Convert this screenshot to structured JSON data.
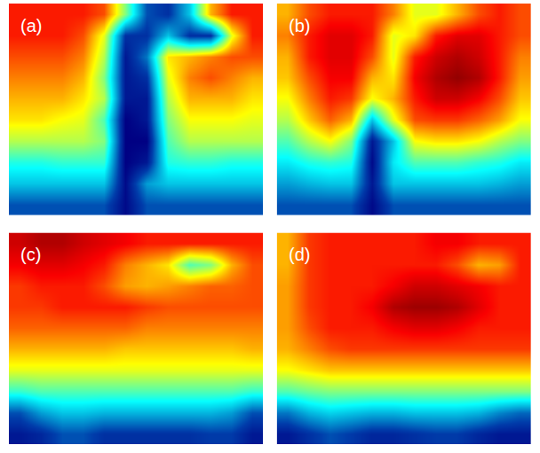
{
  "chart_data": [
    {
      "type": "heatmap",
      "title": "(a)",
      "color": "Jet",
      "zlim": [
        0,
        1
      ],
      "tick_labels": false,
      "z": [
        [
          0.85,
          0.85,
          0.85,
          0.85,
          0.8,
          0.5,
          0.15,
          0.1,
          0.3,
          0.7,
          0.85,
          0.85
        ],
        [
          0.85,
          0.85,
          0.85,
          0.8,
          0.6,
          0.1,
          0.1,
          0.3,
          0.1,
          0.1,
          0.6,
          0.85
        ],
        [
          0.8,
          0.8,
          0.8,
          0.75,
          0.55,
          0.05,
          0.2,
          0.65,
          0.7,
          0.75,
          0.8,
          0.8
        ],
        [
          0.75,
          0.75,
          0.75,
          0.7,
          0.5,
          0.05,
          0.1,
          0.6,
          0.75,
          0.8,
          0.75,
          0.7
        ],
        [
          0.7,
          0.7,
          0.7,
          0.65,
          0.55,
          0.05,
          0.05,
          0.55,
          0.7,
          0.7,
          0.7,
          0.65
        ],
        [
          0.65,
          0.65,
          0.62,
          0.6,
          0.45,
          0.0,
          0.05,
          0.5,
          0.62,
          0.62,
          0.62,
          0.6
        ],
        [
          0.55,
          0.55,
          0.55,
          0.55,
          0.5,
          0.0,
          0.0,
          0.45,
          0.55,
          0.55,
          0.55,
          0.55
        ],
        [
          0.4,
          0.4,
          0.42,
          0.42,
          0.42,
          0.0,
          0.05,
          0.4,
          0.42,
          0.42,
          0.4,
          0.4
        ],
        [
          0.3,
          0.3,
          0.3,
          0.3,
          0.3,
          0.02,
          0.25,
          0.3,
          0.3,
          0.3,
          0.3,
          0.3
        ],
        [
          0.15,
          0.15,
          0.15,
          0.15,
          0.15,
          0.02,
          0.15,
          0.15,
          0.15,
          0.15,
          0.15,
          0.15
        ]
      ]
    },
    {
      "type": "heatmap",
      "title": "(b)",
      "color": "Jet",
      "zlim": [
        0,
        1
      ],
      "tick_labels": false,
      "z": [
        [
          0.7,
          0.8,
          0.85,
          0.85,
          0.85,
          0.75,
          0.6,
          0.6,
          0.7,
          0.8,
          0.85,
          0.8
        ],
        [
          0.75,
          0.85,
          0.9,
          0.9,
          0.85,
          0.6,
          0.65,
          0.85,
          0.9,
          0.9,
          0.85,
          0.8
        ],
        [
          0.7,
          0.85,
          0.9,
          0.9,
          0.8,
          0.6,
          0.85,
          0.92,
          0.95,
          0.92,
          0.85,
          0.75
        ],
        [
          0.68,
          0.8,
          0.88,
          0.88,
          0.7,
          0.65,
          0.88,
          0.95,
          0.98,
          0.95,
          0.85,
          0.72
        ],
        [
          0.62,
          0.75,
          0.85,
          0.82,
          0.62,
          0.7,
          0.85,
          0.92,
          0.92,
          0.88,
          0.8,
          0.68
        ],
        [
          0.55,
          0.68,
          0.78,
          0.7,
          0.3,
          0.6,
          0.8,
          0.82,
          0.82,
          0.78,
          0.72,
          0.62
        ],
        [
          0.45,
          0.55,
          0.62,
          0.5,
          0.05,
          0.3,
          0.62,
          0.65,
          0.65,
          0.62,
          0.55,
          0.5
        ],
        [
          0.35,
          0.4,
          0.42,
          0.4,
          0.02,
          0.35,
          0.45,
          0.45,
          0.45,
          0.42,
          0.4,
          0.35
        ],
        [
          0.25,
          0.28,
          0.3,
          0.3,
          0.05,
          0.3,
          0.3,
          0.3,
          0.3,
          0.3,
          0.28,
          0.25
        ],
        [
          0.15,
          0.15,
          0.15,
          0.15,
          0.02,
          0.15,
          0.15,
          0.15,
          0.15,
          0.15,
          0.15,
          0.15
        ]
      ]
    },
    {
      "type": "heatmap",
      "title": "(c)",
      "color": "Jet",
      "zlim": [
        0,
        1
      ],
      "tick_labels": false,
      "z": [
        [
          0.92,
          0.95,
          0.95,
          0.92,
          0.9,
          0.88,
          0.85,
          0.85,
          0.85,
          0.85,
          0.85,
          0.85
        ],
        [
          0.88,
          0.9,
          0.9,
          0.88,
          0.85,
          0.75,
          0.7,
          0.65,
          0.45,
          0.5,
          0.7,
          0.8
        ],
        [
          0.82,
          0.85,
          0.85,
          0.85,
          0.8,
          0.72,
          0.7,
          0.72,
          0.75,
          0.78,
          0.78,
          0.8
        ],
        [
          0.82,
          0.82,
          0.85,
          0.85,
          0.85,
          0.85,
          0.82,
          0.8,
          0.8,
          0.8,
          0.8,
          0.8
        ],
        [
          0.78,
          0.78,
          0.78,
          0.78,
          0.78,
          0.78,
          0.75,
          0.75,
          0.75,
          0.75,
          0.75,
          0.75
        ],
        [
          0.7,
          0.7,
          0.7,
          0.7,
          0.7,
          0.68,
          0.68,
          0.68,
          0.68,
          0.68,
          0.68,
          0.7
        ],
        [
          0.6,
          0.6,
          0.6,
          0.6,
          0.6,
          0.6,
          0.6,
          0.6,
          0.6,
          0.6,
          0.6,
          0.6
        ],
        [
          0.42,
          0.45,
          0.45,
          0.45,
          0.45,
          0.45,
          0.45,
          0.45,
          0.45,
          0.45,
          0.45,
          0.42
        ],
        [
          0.15,
          0.25,
          0.3,
          0.3,
          0.28,
          0.28,
          0.28,
          0.28,
          0.28,
          0.28,
          0.25,
          0.15
        ],
        [
          0.05,
          0.08,
          0.15,
          0.15,
          0.1,
          0.1,
          0.1,
          0.1,
          0.1,
          0.12,
          0.12,
          0.05
        ]
      ]
    },
    {
      "type": "heatmap",
      "title": "(d)",
      "color": "Jet",
      "zlim": [
        0,
        1
      ],
      "tick_labels": false,
      "z": [
        [
          0.7,
          0.82,
          0.85,
          0.85,
          0.85,
          0.85,
          0.85,
          0.88,
          0.88,
          0.85,
          0.85,
          0.85
        ],
        [
          0.7,
          0.82,
          0.85,
          0.85,
          0.85,
          0.85,
          0.85,
          0.85,
          0.8,
          0.7,
          0.72,
          0.85
        ],
        [
          0.72,
          0.82,
          0.85,
          0.85,
          0.85,
          0.88,
          0.92,
          0.92,
          0.9,
          0.88,
          0.85,
          0.85
        ],
        [
          0.72,
          0.82,
          0.85,
          0.85,
          0.88,
          0.95,
          0.97,
          0.97,
          0.95,
          0.9,
          0.85,
          0.85
        ],
        [
          0.72,
          0.8,
          0.85,
          0.85,
          0.85,
          0.88,
          0.9,
          0.9,
          0.88,
          0.85,
          0.85,
          0.85
        ],
        [
          0.7,
          0.75,
          0.8,
          0.82,
          0.82,
          0.82,
          0.82,
          0.82,
          0.82,
          0.82,
          0.82,
          0.82
        ],
        [
          0.62,
          0.65,
          0.68,
          0.68,
          0.68,
          0.68,
          0.68,
          0.68,
          0.68,
          0.68,
          0.68,
          0.68
        ],
        [
          0.45,
          0.48,
          0.5,
          0.5,
          0.5,
          0.5,
          0.5,
          0.5,
          0.5,
          0.5,
          0.5,
          0.5
        ],
        [
          0.2,
          0.28,
          0.32,
          0.3,
          0.28,
          0.28,
          0.3,
          0.3,
          0.3,
          0.28,
          0.22,
          0.18
        ],
        [
          0.05,
          0.1,
          0.15,
          0.12,
          0.08,
          0.08,
          0.1,
          0.12,
          0.12,
          0.08,
          0.05,
          0.05
        ]
      ]
    }
  ]
}
